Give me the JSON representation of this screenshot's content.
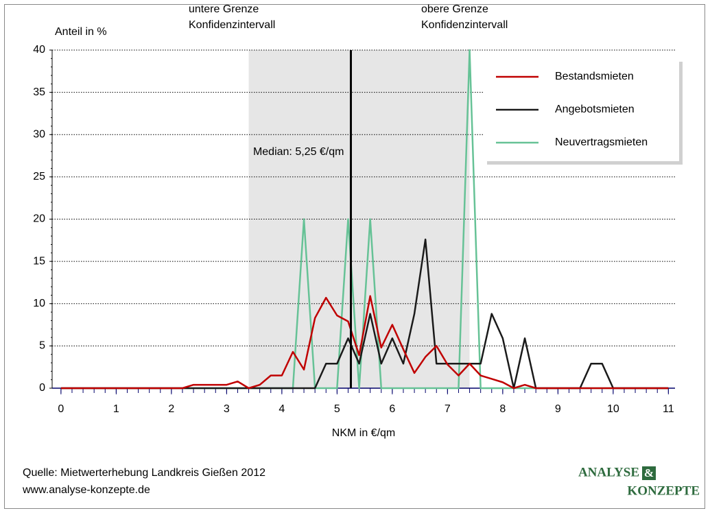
{
  "chart_data": {
    "type": "line",
    "ylabel": "Anteil in %",
    "xlabel": "NKM in €/qm",
    "lower_bound_label": "untere Grenze\nKonfidenzintervall",
    "upper_bound_label": "obere Grenze\nKonfidenzintervall",
    "confidence_interval": [
      3.4,
      7.4
    ],
    "median": 5.25,
    "median_label": "Median: 5,25 €/qm",
    "x": [
      0,
      0.2,
      0.4,
      0.6,
      0.8,
      1,
      1.2,
      1.4,
      1.6,
      1.8,
      2,
      2.2,
      2.4,
      2.6,
      2.8,
      3,
      3.2,
      3.4,
      3.6,
      3.8,
      4,
      4.2,
      4.4,
      4.6,
      4.8,
      5,
      5.2,
      5.4,
      5.6,
      5.8,
      6,
      6.2,
      6.4,
      6.6,
      6.8,
      7,
      7.2,
      7.4,
      7.6,
      7.8,
      8,
      8.2,
      8.4,
      8.6,
      8.8,
      9,
      9.2,
      9.4,
      9.6,
      9.8,
      10,
      10.2,
      10.4,
      10.6,
      10.8,
      11
    ],
    "series": [
      {
        "name": "Bestandsmieten",
        "color": "#c00000",
        "values": [
          0,
          0,
          0,
          0,
          0,
          0,
          0,
          0,
          0,
          0,
          0,
          0,
          0.4,
          0.4,
          0.4,
          0.4,
          0.8,
          0,
          0.4,
          1.5,
          1.5,
          4.3,
          2.2,
          8.3,
          10.7,
          8.6,
          7.9,
          3.9,
          10.9,
          4.8,
          7.5,
          4.6,
          1.8,
          3.7,
          5.0,
          2.8,
          1.5,
          2.9,
          1.5,
          1.1,
          0.7,
          0,
          0.4,
          0,
          0,
          0,
          0,
          0,
          0,
          0,
          0,
          0,
          0,
          0,
          0,
          0
        ]
      },
      {
        "name": "Angebotsmieten",
        "color": "#1a1a1a",
        "values": [
          0,
          0,
          0,
          0,
          0,
          0,
          0,
          0,
          0,
          0,
          0,
          0,
          0,
          0,
          0,
          0,
          0,
          0,
          0,
          0,
          0,
          0,
          0,
          0,
          2.9,
          2.9,
          5.9,
          2.9,
          8.8,
          2.9,
          5.9,
          2.9,
          8.8,
          17.6,
          2.9,
          2.9,
          2.9,
          2.9,
          2.9,
          8.8,
          5.9,
          0,
          5.9,
          0,
          0,
          0,
          0,
          0,
          2.9,
          2.9,
          0,
          0,
          0,
          0,
          0,
          0
        ]
      },
      {
        "name": "Neuvertragsmieten",
        "color": "#66c296",
        "values": [
          0,
          0,
          0,
          0,
          0,
          0,
          0,
          0,
          0,
          0,
          0,
          0,
          0,
          0,
          0,
          0,
          0,
          0,
          0,
          0,
          0,
          0,
          20,
          0,
          0,
          0,
          20,
          0,
          20,
          0,
          0,
          0,
          0,
          0,
          0,
          0,
          0,
          40,
          0,
          0,
          0,
          0,
          0,
          0,
          0,
          0,
          0,
          0,
          0,
          0,
          0,
          0,
          0,
          0,
          0,
          0
        ]
      }
    ],
    "xlim": [
      -0.16,
      11.12
    ],
    "ylim": [
      0,
      40
    ],
    "xticks": [
      0,
      1,
      2,
      3,
      4,
      5,
      6,
      7,
      8,
      9,
      10,
      11
    ],
    "yticks": [
      0,
      5,
      10,
      15,
      20,
      25,
      30,
      35,
      40
    ],
    "grid": true,
    "legend": "upper right"
  },
  "footer": {
    "source": "Quelle: Mietwerterhebung Landkreis Gießen 2012",
    "url": "www.analyse-konzepte.de",
    "logo_line1": "ANALYSE",
    "logo_amp": "&",
    "logo_line2": "KONZEPTE"
  }
}
